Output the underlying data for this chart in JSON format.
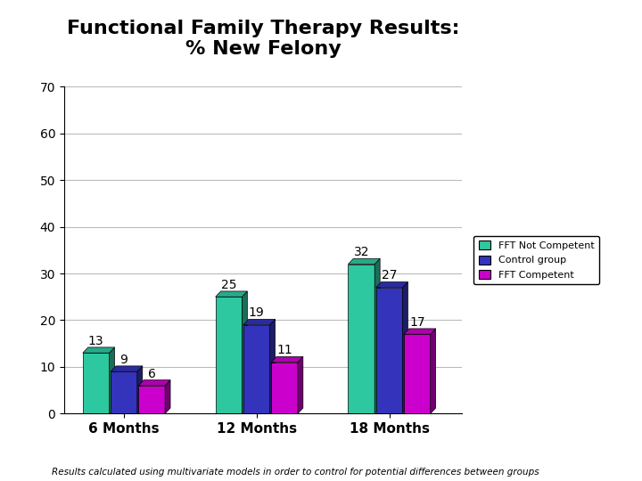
{
  "title": "Functional Family Therapy Results:\n% New Felony",
  "categories": [
    "6 Months",
    "12 Months",
    "18 Months"
  ],
  "series": [
    {
      "label": "FFT Not Competent",
      "color": "#2DC8A0",
      "values": [
        13,
        25,
        32
      ]
    },
    {
      "label": "Control group",
      "color": "#3333BB",
      "values": [
        9,
        19,
        27
      ]
    },
    {
      "label": "FFT Competent",
      "color": "#CC00CC",
      "values": [
        6,
        11,
        17
      ]
    }
  ],
  "ylim": [
    0,
    70
  ],
  "yticks": [
    0,
    10,
    20,
    30,
    40,
    50,
    60,
    70
  ],
  "footnote": "Results calculated using multivariate models in order to control for potential differences between groups",
  "bar_width": 0.2,
  "background_color": "#FFFFFF",
  "title_fontsize": 16,
  "tick_fontsize": 10,
  "label_fontsize": 11,
  "legend_fontsize": 8,
  "footnote_fontsize": 7.5,
  "value_fontsize": 10
}
